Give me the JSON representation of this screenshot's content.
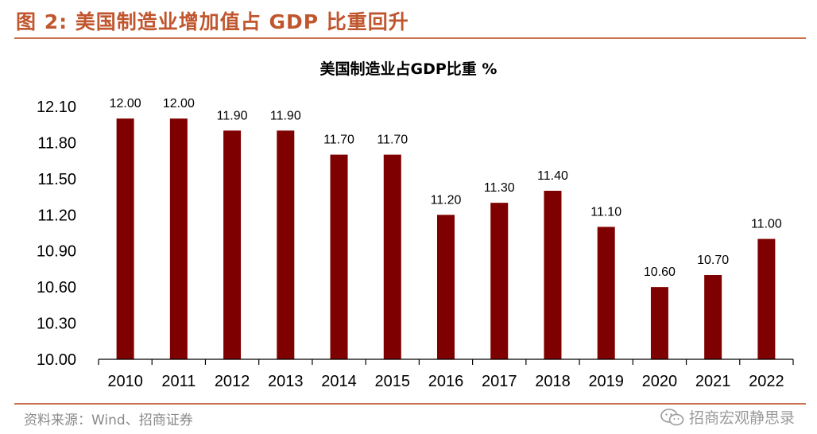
{
  "header": {
    "figure_title": "图 2:  美国制造业增加值占 GDP 比重回升"
  },
  "footer": {
    "source": "资料来源：Wind、招商证券",
    "watermark": "招商宏观静思录"
  },
  "chart_data": {
    "type": "bar",
    "title": "美国制造业占GDP比重 %",
    "categories": [
      "2010",
      "2011",
      "2012",
      "2013",
      "2014",
      "2015",
      "2016",
      "2017",
      "2018",
      "2019",
      "2020",
      "2021",
      "2022"
    ],
    "values": [
      12.0,
      12.0,
      11.9,
      11.9,
      11.7,
      11.7,
      11.2,
      11.3,
      11.4,
      11.1,
      10.6,
      10.7,
      11.0
    ],
    "data_labels": [
      "12.00",
      "12.00",
      "11.90",
      "11.90",
      "11.70",
      "11.70",
      "11.20",
      "11.30",
      "11.40",
      "11.10",
      "10.60",
      "10.70",
      "11.00"
    ],
    "yticks": [
      "10.00",
      "10.30",
      "10.60",
      "10.90",
      "11.20",
      "11.50",
      "11.80",
      "12.10"
    ],
    "ylim": [
      10.0,
      12.1
    ],
    "xlabel": "",
    "ylabel": "",
    "bar_color": "#7f0000",
    "grid": false
  }
}
